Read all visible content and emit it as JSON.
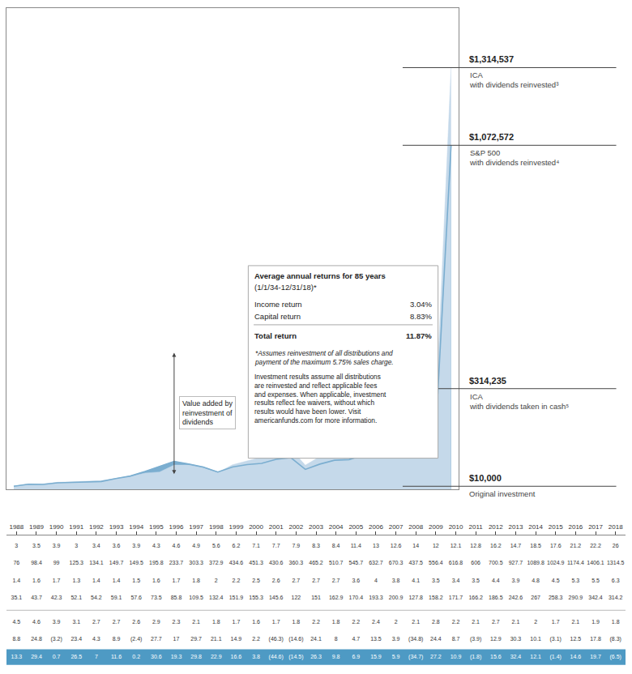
{
  "chart_data": [
    {
      "type": "area",
      "x": [
        1988,
        1989,
        1990,
        1991,
        1992,
        1993,
        1994,
        1995,
        1996,
        1997,
        1998,
        1999,
        2000,
        2001,
        2002,
        2003,
        2004,
        2005,
        2006,
        2007,
        2008,
        2009,
        2010,
        2011,
        2012,
        2013,
        2014,
        2015,
        2016,
        2017,
        2018
      ],
      "series": [
        {
          "color": "#c5d9ea",
          "values": [
            10000,
            17600,
            17424,
            22434,
            24089,
            26487,
            27717,
            34453,
            40019,
            51177,
            54491,
            76028,
            76028,
            67625,
            52697,
            76960,
            88940,
            100743,
            117164,
            127180,
            75560,
            102520,
            118268,
            120388,
            138948,
            186046,
            208074,
            211453,
            243000,
            290943,
            1314537
          ]
        },
        {
          "color": "#7baed0",
          "line_style": "solid",
          "values": [
            10000,
            16326,
            15793,
            20622,
            22201,
            24389,
            24784,
            34069,
            41926,
            55929,
            71944,
            87164,
            79205,
            69813,
            54360,
            70029,
            77620,
            81352,
            94088,
            99339,
            62532,
            79111,
            91096,
            93041,
            107911,
            142730,
            162162,
            164422,
            183893,
            224132,
            1072572
          ]
        },
        {
          "color": "#4e9ac4",
          "values": [
            10000,
            13400,
            12560,
            15497,
            16347,
            17714,
            18245,
            22384,
            25527,
            31909,
            33292,
            45672,
            44625,
            38838,
            29724,
            42428,
            48264,
            53933,
            61830,
            66119,
            38580,
            51253,
            58390,
            58774,
            67036,
            88429,
            97648,
            97861,
            111342,
            131705,
            314235
          ]
        }
      ],
      "xlim": [
        1987.5,
        2018.5
      ],
      "ylim": [
        0,
        1500000
      ],
      "stacked": false,
      "grid": false,
      "tick_labels": false,
      "annotations": [
        {
          "y": 1314537,
          "label": "$1,314,537",
          "text": "ICA\nwith dividends reinvested³"
        },
        {
          "y": 1072572,
          "label": "$1,072,572",
          "text": "S&P 500\nwith dividends reinvested⁴"
        },
        {
          "y": 314235,
          "label": "$314,235",
          "text": "ICA\nwith dividends taken in cash⁵"
        },
        {
          "y": 10000,
          "label": "$10,000",
          "text": "Original investment"
        },
        {
          "x": 1999,
          "y": [
            48000,
            430000
          ],
          "text": "Value added by\nreinvestment of\ndividends"
        }
      ],
      "box": {
        "title": "Average annual returns for 85 years",
        "subtitle": "(1/1/34-12/31/18)*",
        "categories": [
          "Income return",
          "Capital return",
          "Total return"
        ],
        "value_labels": [
          "3.04%",
          "8.83%",
          "11.87%"
        ],
        "notes": [
          "*Assumes reinvestment of all distributions and\npayment of the maximum 5.75% sales charge.",
          "Investment results assume all distributions\nare reinvested and reflect applicable fees\nand expenses. When applicable, investment\nresults reflect fee waivers, without which\nresults would have been lower. Visit\namericanfunds.com for more information."
        ]
      }
    },
    {
      "type": "table",
      "categories": [
        1988,
        1989,
        1990,
        1991,
        1992,
        1993,
        1994,
        1995,
        1996,
        1997,
        1998,
        1999,
        2000,
        2001,
        2002,
        2003,
        2004,
        2005,
        2006,
        2007,
        2008,
        2009,
        2010,
        2011,
        2012,
        2013,
        2014,
        2015,
        2016,
        2017,
        2018
      ],
      "series": [
        {
          "values": [
            3.0,
            3.5,
            3.9,
            3.0,
            3.4,
            3.6,
            3.9,
            4.3,
            4.6,
            4.9,
            5.6,
            6.2,
            7.1,
            7.7,
            7.9,
            8.3,
            8.4,
            11.4,
            13.0,
            12.6,
            14.0,
            12.0,
            12.1,
            12.8,
            16.2,
            14.7,
            18.5,
            17.6,
            21.2,
            22.2,
            26.0
          ]
        },
        {
          "values": [
            76.0,
            98.4,
            99.0,
            125.3,
            134.1,
            149.7,
            149.5,
            195.8,
            233.7,
            303.3,
            372.9,
            434.6,
            451.3,
            430.6,
            360.3,
            465.2,
            510.7,
            545.7,
            632.7,
            670.3,
            437.5,
            556.4,
            616.8,
            606.0,
            700.5,
            927.7,
            1089.8,
            1024.9,
            1174.4,
            1406.1,
            1314.5
          ]
        },
        {
          "values": [
            1.4,
            1.6,
            1.7,
            1.3,
            1.4,
            1.4,
            1.5,
            1.6,
            1.7,
            1.8,
            2.0,
            2.2,
            2.5,
            2.6,
            2.7,
            2.7,
            2.7,
            3.6,
            4.0,
            3.8,
            4.1,
            3.5,
            3.4,
            3.5,
            4.4,
            3.9,
            4.8,
            4.5,
            5.3,
            5.5,
            6.3
          ]
        },
        {
          "values": [
            35.1,
            43.7,
            42.3,
            52.1,
            54.2,
            59.1,
            57.6,
            73.5,
            85.8,
            109.5,
            132.4,
            151.9,
            155.3,
            145.6,
            122.0,
            151.0,
            162.9,
            170.4,
            193.3,
            200.9,
            127.8,
            158.2,
            171.7,
            166.2,
            186.5,
            242.6,
            267.0,
            258.3,
            290.9,
            342.4,
            314.2
          ]
        },
        {
          "values": [
            4.5,
            4.6,
            3.9,
            3.1,
            2.7,
            2.7,
            2.6,
            2.9,
            2.3,
            2.1,
            1.8,
            1.7,
            1.6,
            1.7,
            1.8,
            2.2,
            1.8,
            2.2,
            2.4,
            2.0,
            2.1,
            2.8,
            2.2,
            2.1,
            2.7,
            2.1,
            2.0,
            1.7,
            2.1,
            1.9,
            1.8
          ]
        },
        {
          "values": [
            8.8,
            24.8,
            -3.2,
            23.4,
            4.3,
            8.9,
            -2.4,
            27.7,
            17.0,
            29.7,
            21.1,
            14.9,
            2.2,
            -46.3,
            -14.6,
            24.1,
            8.0,
            4.7,
            13.5,
            3.9,
            -34.8,
            24.4,
            8.7,
            -3.9,
            12.9,
            30.3,
            10.1,
            -3.1,
            12.5,
            17.8,
            -8.3
          ],
          "value_labels": [
            "8.8",
            "24.8",
            "(3.2)",
            "23.4",
            "4.3",
            "8.9",
            "(2.4)",
            "27.7",
            "17",
            "29.7",
            "21.1",
            "14.9",
            "2.2",
            "(46.3)",
            "(14.6)",
            "24.1",
            "8",
            "4.7",
            "13.5",
            "3.9",
            "(34.8)",
            "24.4",
            "8.7",
            "(3.9)",
            "12.9",
            "30.3",
            "10.1",
            "(3.1)",
            "12.5",
            "17.8",
            "(8.3)"
          ]
        },
        {
          "color": "#4e9ac4",
          "values": [
            13.3,
            29.4,
            0.7,
            26.5,
            7.0,
            11.6,
            0.2,
            30.6,
            19.3,
            29.8,
            22.9,
            16.6,
            3.8,
            -44.6,
            -14.5,
            26.3,
            9.8,
            6.9,
            15.9,
            5.9,
            -34.7,
            27.2,
            10.9,
            -1.8,
            15.6,
            32.4,
            12.1,
            -1.4,
            14.6,
            19.7,
            -6.5
          ],
          "value_labels": [
            "13.3",
            "29.4",
            "0.7",
            "26.5",
            "7",
            "11.6",
            "0.2",
            "30.6",
            "19.3",
            "29.8",
            "22.9",
            "16.6",
            "3.8",
            "(44.6)",
            "(14.5)",
            "26.3",
            "9.8",
            "6.9",
            "15.9",
            "5.9",
            "(34.7)",
            "27.2",
            "10.9",
            "(1.8)",
            "15.6",
            "32.4",
            "12.1",
            "(1.4)",
            "14.6",
            "19.7",
            "(6.5)"
          ]
        }
      ]
    }
  ]
}
